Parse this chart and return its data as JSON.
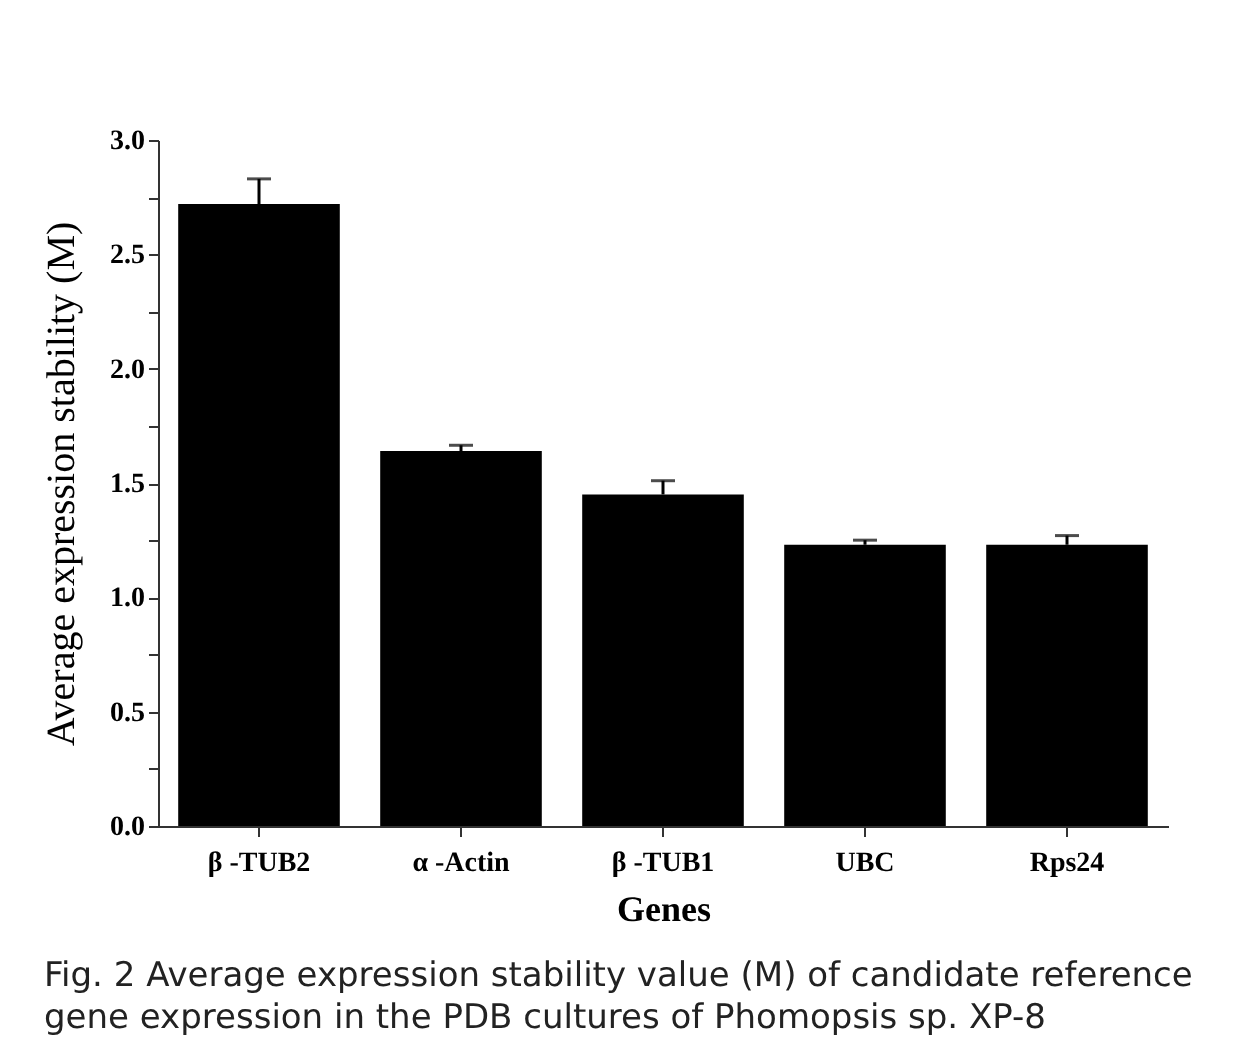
{
  "chart_data": {
    "type": "bar",
    "xlabel": "Genes",
    "ylabel": "Average expression stability (M)",
    "categories": [
      "β -TUB2",
      "α -Actin",
      "β -TUB1",
      "UBC",
      "Rps24"
    ],
    "values": [
      2.72,
      1.64,
      1.45,
      1.23,
      1.23
    ],
    "errors": [
      [
        2.72,
        2.83
      ],
      [
        1.64,
        1.665
      ],
      [
        1.45,
        1.51
      ],
      [
        1.23,
        1.25
      ],
      [
        1.23,
        1.27
      ]
    ],
    "color": "#000000",
    "ylim": [
      0,
      3
    ],
    "yticks": [
      {
        "value": 0,
        "label": "0.0"
      },
      {
        "value": 0.25,
        "label": null
      },
      0.5,
      {
        "value": 0.75,
        "label": null
      },
      {
        "value": 1,
        "label": "1.0"
      },
      {
        "value": 1.25,
        "label": null
      },
      1.5,
      {
        "value": 1.75,
        "label": null
      },
      {
        "value": 2,
        "label": "2.0"
      },
      {
        "value": 2.25,
        "label": null
      },
      2.5,
      {
        "value": 2.75,
        "label": null
      },
      {
        "value": 3,
        "label": "3.0"
      }
    ],
    "grid": false,
    "annotations": [
      "Fig. 2  Average expression stability value (M) of candidate reference gene expression in the PDB cultures of Phomopsis sp. XP-8"
    ]
  }
}
